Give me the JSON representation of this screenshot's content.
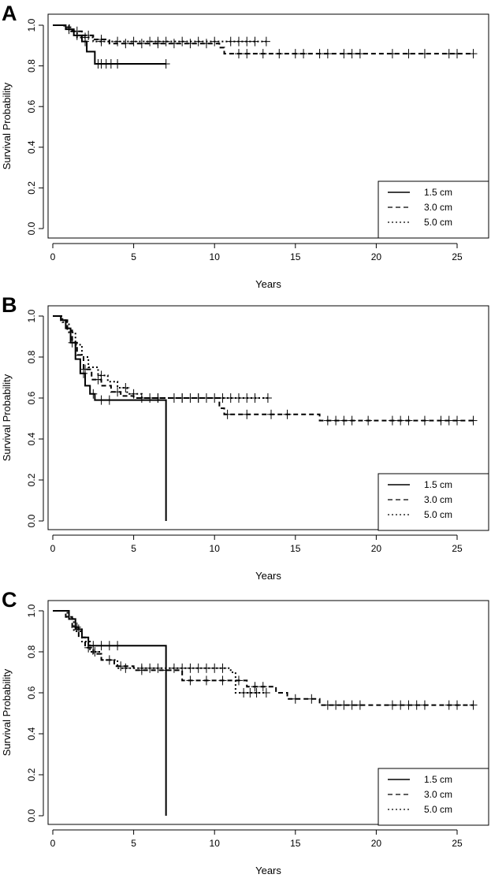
{
  "chart_data": [
    {
      "type": "line",
      "panel": "A",
      "xlabel": "Years",
      "ylabel": "Survival Probability",
      "xlim": [
        0,
        26
      ],
      "ylim": [
        0,
        1
      ],
      "xticks": [
        "0",
        "5",
        "10",
        "15",
        "20",
        "25"
      ],
      "yticks": [
        "0.0",
        "0.2",
        "0.4",
        "0.6",
        "0.8",
        "1.0"
      ],
      "legend_position": "bottom-right",
      "series": [
        {
          "name": "1.5 cm",
          "style": "solid",
          "x": [
            0,
            0.8,
            1.3,
            1.8,
            2.1,
            2.6,
            7.0
          ],
          "y": [
            1.0,
            0.98,
            0.95,
            0.92,
            0.87,
            0.81,
            0.81
          ],
          "censor_x": [
            1.0,
            1.5,
            2.0,
            2.8,
            3.0,
            3.3,
            3.6,
            4.0,
            7.0
          ],
          "end_x": 7.0
        },
        {
          "name": "3.0 cm",
          "style": "dashed",
          "x": [
            0,
            0.7,
            1.2,
            1.8,
            2.5,
            3.5,
            8.0,
            10.3,
            10.6,
            26.0
          ],
          "y": [
            1.0,
            0.99,
            0.97,
            0.95,
            0.93,
            0.91,
            0.91,
            0.89,
            0.86,
            0.86
          ],
          "censor_x": [
            1.5,
            2.2,
            3.0,
            4.5,
            5.5,
            6.5,
            7.5,
            8.5,
            9.5,
            11.5,
            12.0,
            13.0,
            14.0,
            15.0,
            15.5,
            16.5,
            17.0,
            18.0,
            18.5,
            19.0,
            21.0,
            22.0,
            23.0,
            24.5,
            25.0,
            26.0
          ],
          "end_x": 26.0
        },
        {
          "name": "5.0 cm",
          "style": "dotted",
          "x": [
            0,
            1.0,
            1.5,
            2.5,
            10.0,
            13.2
          ],
          "y": [
            1.0,
            0.97,
            0.94,
            0.92,
            0.92,
            0.92
          ],
          "censor_x": [
            2.0,
            3.0,
            4.0,
            5.0,
            6.0,
            6.5,
            7.0,
            8.0,
            9.0,
            10.0,
            11.0,
            11.5,
            12.0,
            12.5,
            13.2
          ],
          "end_x": 13.2
        }
      ]
    },
    {
      "type": "line",
      "panel": "B",
      "xlabel": "Years",
      "ylabel": "Survival Probability",
      "xlim": [
        0,
        26
      ],
      "ylim": [
        0,
        1
      ],
      "xticks": [
        "0",
        "5",
        "10",
        "15",
        "20",
        "25"
      ],
      "yticks": [
        "0.0",
        "0.2",
        "0.4",
        "0.6",
        "0.8",
        "1.0"
      ],
      "legend_position": "bottom-right",
      "series": [
        {
          "name": "1.5 cm",
          "style": "solid",
          "x": [
            0,
            0.5,
            0.8,
            1.1,
            1.4,
            1.7,
            2.0,
            2.3,
            2.6,
            7.0,
            7.0
          ],
          "y": [
            1.0,
            0.98,
            0.94,
            0.87,
            0.79,
            0.72,
            0.66,
            0.62,
            0.59,
            0.59,
            0.0
          ],
          "censor_x": [
            1.2,
            1.9,
            2.5,
            3.0,
            3.5
          ],
          "end_x": 7.0
        },
        {
          "name": "3.0 cm",
          "style": "dashed",
          "x": [
            0,
            0.5,
            0.9,
            1.2,
            1.5,
            1.9,
            2.4,
            3.0,
            3.6,
            4.2,
            5.0,
            10.3,
            10.6,
            16.5,
            26.0
          ],
          "y": [
            1.0,
            0.98,
            0.93,
            0.87,
            0.81,
            0.74,
            0.69,
            0.66,
            0.63,
            0.61,
            0.6,
            0.55,
            0.52,
            0.49,
            0.49
          ],
          "censor_x": [
            2.0,
            2.8,
            4.0,
            5.5,
            6.5,
            8.0,
            9.0,
            10.8,
            12.0,
            13.5,
            14.5,
            17.0,
            17.5,
            18.0,
            18.5,
            19.5,
            21.0,
            21.5,
            22.0,
            23.0,
            24.0,
            24.5,
            25.0,
            26.0
          ],
          "end_x": 26.0
        },
        {
          "name": "5.0 cm",
          "style": "dotted",
          "x": [
            0,
            0.6,
            1.0,
            1.4,
            1.8,
            2.2,
            2.8,
            3.4,
            4.0,
            4.6,
            5.5,
            13.3
          ],
          "y": [
            1.0,
            0.97,
            0.92,
            0.86,
            0.8,
            0.75,
            0.71,
            0.68,
            0.65,
            0.62,
            0.6,
            0.6
          ],
          "censor_x": [
            3.0,
            4.5,
            5.0,
            6.0,
            6.5,
            7.5,
            8.0,
            8.5,
            9.0,
            9.5,
            10.0,
            10.5,
            11.0,
            11.5,
            12.0,
            12.5,
            13.3
          ],
          "end_x": 13.3
        }
      ]
    },
    {
      "type": "line",
      "panel": "C",
      "xlabel": "Years",
      "ylabel": "Survival Probability",
      "xlim": [
        0,
        26
      ],
      "ylim": [
        0,
        1
      ],
      "xticks": [
        "0",
        "5",
        "10",
        "15",
        "20",
        "25"
      ],
      "yticks": [
        "0.0",
        "0.2",
        "0.4",
        "0.6",
        "0.8",
        "1.0"
      ],
      "legend_position": "bottom-right",
      "series": [
        {
          "name": "1.5 cm",
          "style": "solid",
          "x": [
            0,
            1.0,
            1.4,
            1.8,
            2.2,
            7.0,
            7.0
          ],
          "y": [
            1.0,
            0.96,
            0.91,
            0.87,
            0.83,
            0.83,
            0.0
          ],
          "censor_x": [
            1.6,
            2.5,
            3.0,
            3.5,
            4.0
          ],
          "end_x": 7.0
        },
        {
          "name": "3.0 cm",
          "style": "dashed",
          "x": [
            0,
            0.8,
            1.2,
            1.6,
            2.0,
            2.5,
            3.0,
            3.8,
            5.0,
            8.0,
            11.0,
            12.0,
            13.8,
            14.5,
            16.5,
            26.0
          ],
          "y": [
            1.0,
            0.97,
            0.92,
            0.87,
            0.82,
            0.79,
            0.76,
            0.73,
            0.71,
            0.66,
            0.66,
            0.63,
            0.6,
            0.57,
            0.54,
            0.54
          ],
          "censor_x": [
            1.5,
            2.2,
            4.2,
            5.5,
            7.0,
            8.5,
            9.5,
            10.5,
            11.5,
            12.5,
            13.0,
            15.0,
            16.0,
            17.0,
            17.5,
            18.0,
            18.5,
            19.0,
            21.0,
            21.5,
            22.0,
            22.5,
            23.0,
            24.5,
            25.0,
            26.0
          ],
          "end_x": 26.0
        },
        {
          "name": "5.0 cm",
          "style": "dotted",
          "x": [
            0,
            0.9,
            1.3,
            1.8,
            2.3,
            3.0,
            4.0,
            10.0,
            11.0,
            11.3,
            13.2
          ],
          "y": [
            1.0,
            0.96,
            0.9,
            0.85,
            0.8,
            0.76,
            0.72,
            0.72,
            0.7,
            0.6,
            0.6
          ],
          "censor_x": [
            2.6,
            3.5,
            4.5,
            5.5,
            6.0,
            6.5,
            7.5,
            8.0,
            8.5,
            9.0,
            9.5,
            10.0,
            10.5,
            11.8,
            12.2,
            12.6,
            13.2
          ],
          "end_x": 13.2
        }
      ]
    }
  ]
}
